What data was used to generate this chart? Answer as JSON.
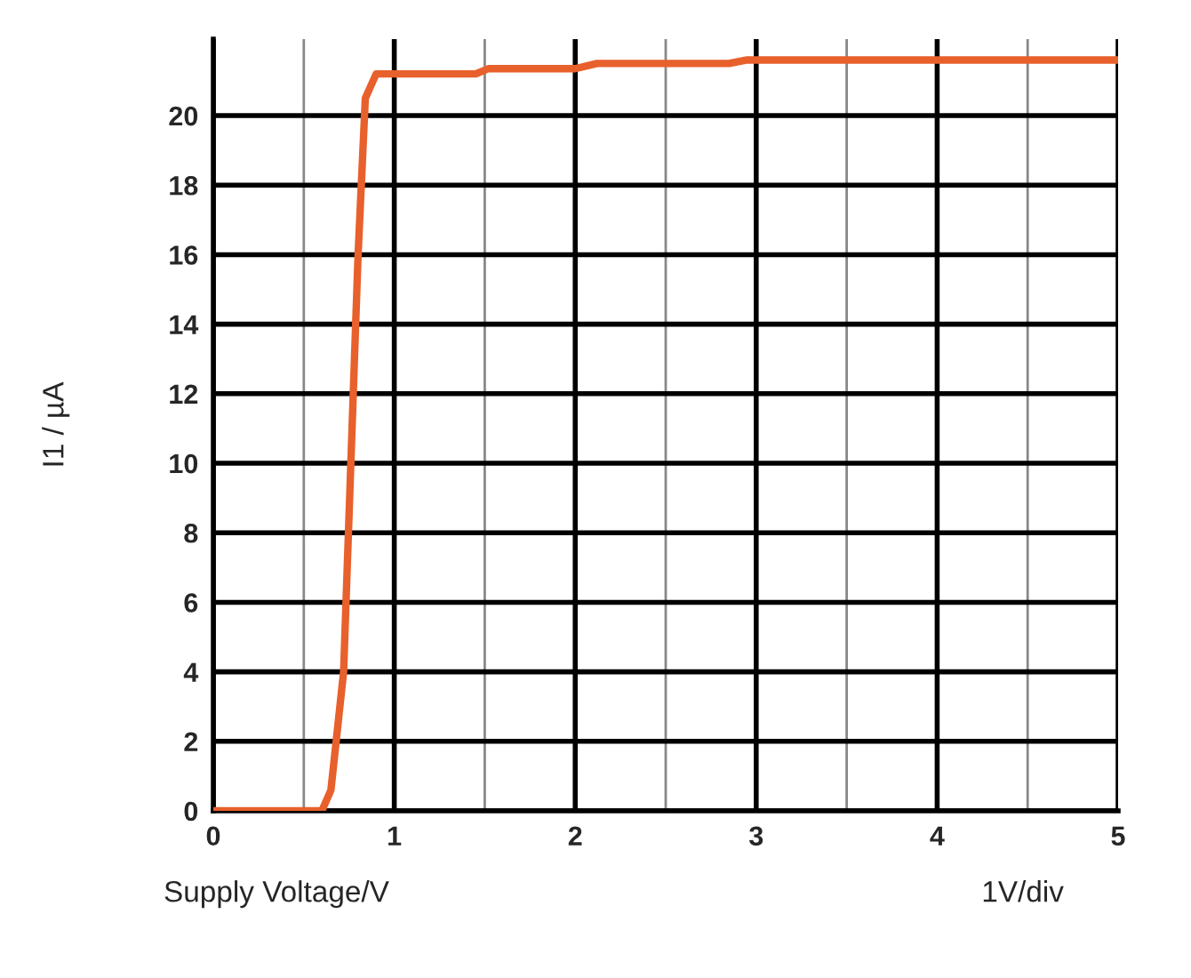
{
  "chart_data": {
    "type": "line",
    "xlabel": "Supply Voltage/V",
    "ylabel": "I1 / µA",
    "annotations": [
      "1V/div"
    ],
    "series": [
      {
        "color": "#e8602c",
        "x": [
          0,
          0.6,
          0.65,
          0.72,
          0.8,
          0.84,
          0.9,
          1.45,
          1.52,
          2.0,
          2.12,
          2.85,
          2.95,
          5
        ],
        "values": [
          0,
          0,
          0.6,
          4,
          16,
          20.5,
          21.2,
          21.2,
          21.35,
          21.35,
          21.5,
          21.5,
          21.6,
          21.6
        ]
      }
    ],
    "xlim": [
      0,
      5
    ],
    "ylim": [
      0,
      22.2
    ],
    "xticks": [
      0,
      {
        "value": 0.5,
        "label": null
      },
      1,
      {
        "value": 1.5,
        "label": null
      },
      2,
      {
        "value": 2.5,
        "label": null
      },
      3,
      {
        "value": 3.5,
        "label": null
      },
      4,
      {
        "value": 4.5,
        "label": null
      },
      5
    ],
    "yticks": [
      0,
      2,
      4,
      6,
      8,
      10,
      12,
      14,
      16,
      18,
      20
    ],
    "grid": true,
    "legend": false,
    "marker": "none",
    "line_style": "solid"
  }
}
